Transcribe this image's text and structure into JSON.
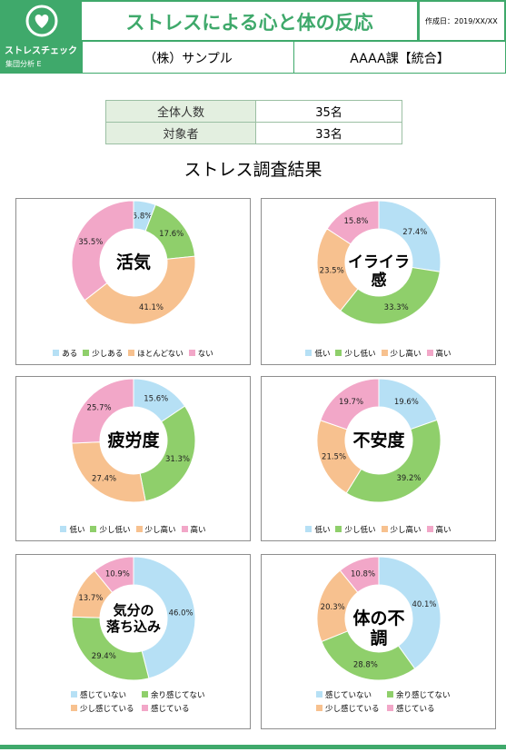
{
  "header": {
    "logo_title": "ストレスチェック",
    "logo_sub": "集団分析 E",
    "title": "ストレスによる心と体の反応",
    "date": "作成日：2019/XX/XX",
    "company": "（株）サンプル",
    "department": "AAAA課【統合】"
  },
  "summary": [
    {
      "label": "全体人数",
      "value": "35名"
    },
    {
      "label": "対象者",
      "value": "33名"
    }
  ],
  "section_title": "ストレス調査結果",
  "colors": {
    "brand": "#3fa96b",
    "blue": "#b6e0f5",
    "green": "#8fcf6b",
    "orange": "#f7c18f",
    "pink": "#f2a7c8"
  },
  "chart_data": [
    {
      "type": "pie",
      "title": "活気",
      "categories": [
        "ある",
        "少しある",
        "ほとんどない",
        "ない"
      ],
      "values": [
        5.8,
        17.6,
        41.1,
        35.5
      ],
      "labels": [
        "5.8%",
        "17.6%",
        "41.1%",
        "35.5%"
      ]
    },
    {
      "type": "pie",
      "title": "イライラ感",
      "categories": [
        "低い",
        "少し低い",
        "少し高い",
        "高い"
      ],
      "values": [
        27.4,
        33.3,
        23.5,
        15.8
      ],
      "labels": [
        "27.4%",
        "33.3%",
        "23.5%",
        "15.8%"
      ]
    },
    {
      "type": "pie",
      "title": "疲労度",
      "categories": [
        "低い",
        "少し低い",
        "少し高い",
        "高い"
      ],
      "values": [
        15.6,
        31.3,
        27.4,
        25.7
      ],
      "labels": [
        "15.6%",
        "31.3%",
        "27.4%",
        "25.7%"
      ]
    },
    {
      "type": "pie",
      "title": "不安度",
      "categories": [
        "低い",
        "少し低い",
        "少し高い",
        "高い"
      ],
      "values": [
        19.6,
        39.2,
        21.5,
        19.7
      ],
      "labels": [
        "19.6%",
        "39.2%",
        "21.5%",
        "19.7%"
      ]
    },
    {
      "type": "pie",
      "title": "気分の\n落ち込み",
      "categories": [
        "感じていない",
        "余り感じてない",
        "少し感じている",
        "感じている"
      ],
      "values": [
        46.0,
        29.4,
        13.7,
        10.9
      ],
      "labels": [
        "46.0%",
        "29.4%",
        "13.7%",
        "10.9%"
      ]
    },
    {
      "type": "pie",
      "title": "体の不調",
      "categories": [
        "感じていない",
        "余り感じてない",
        "少し感じている",
        "感じている"
      ],
      "values": [
        40.1,
        28.8,
        20.3,
        10.8
      ],
      "labels": [
        "40.1%",
        "28.8%",
        "20.3%",
        "10.8%"
      ]
    }
  ]
}
